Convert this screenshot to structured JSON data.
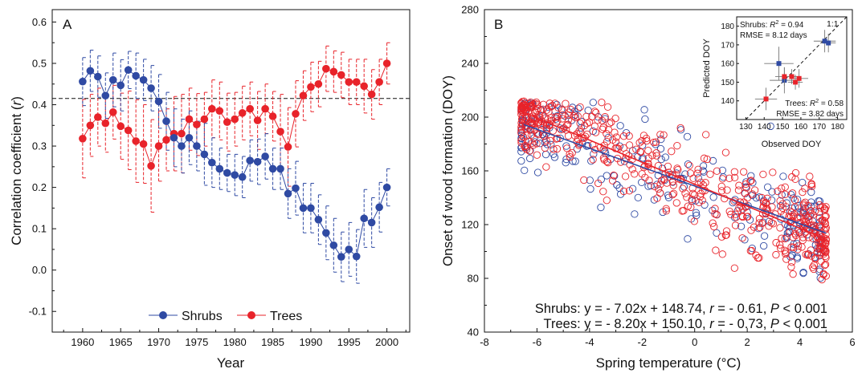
{
  "colors": {
    "shrubs": "#2f4aa3",
    "trees": "#e8232a",
    "text": "#111111",
    "axis": "#111111"
  },
  "chart_data": [
    {
      "panel": "A",
      "type": "line",
      "xlabel": "Year",
      "ylabel_main": "Correlation coefficient (",
      "ylabel_var": "r",
      "ylabel_end": ")",
      "xlim": [
        1956,
        2003
      ],
      "ylim": [
        -0.15,
        0.63
      ],
      "xticks": [
        "1960",
        "1965",
        "1970",
        "1975",
        "1980",
        "1985",
        "1990",
        "1995",
        "2000"
      ],
      "yticks": [
        "-0.1",
        "0.0",
        "0.1",
        "0.2",
        "0.3",
        "0.4",
        "0.5",
        "0.6"
      ],
      "threshold": 0.415,
      "x": [
        1960,
        1961,
        1962,
        1963,
        1964,
        1965,
        1966,
        1967,
        1968,
        1969,
        1970,
        1971,
        1972,
        1973,
        1974,
        1975,
        1976,
        1977,
        1978,
        1979,
        1980,
        1981,
        1982,
        1983,
        1984,
        1985,
        1986,
        1987,
        1988,
        1989,
        1990,
        1991,
        1992,
        1993,
        1994,
        1995,
        1996,
        1997,
        1998,
        1999,
        2000
      ],
      "series": [
        {
          "name": "Shrubs",
          "values": [
            0.456,
            0.482,
            0.468,
            0.422,
            0.46,
            0.447,
            0.484,
            0.47,
            0.46,
            0.44,
            0.408,
            0.36,
            0.32,
            0.3,
            0.32,
            0.3,
            0.28,
            0.26,
            0.245,
            0.235,
            0.23,
            0.225,
            0.265,
            0.262,
            0.275,
            0.245,
            0.245,
            0.185,
            0.198,
            0.15,
            0.15,
            0.122,
            0.09,
            0.06,
            0.032,
            0.05,
            0.033,
            0.125,
            0.115,
            0.152,
            0.2
          ],
          "err": [
            0.058,
            0.05,
            0.05,
            0.055,
            0.065,
            0.062,
            0.045,
            0.055,
            0.05,
            0.055,
            0.065,
            0.07,
            0.07,
            0.065,
            0.065,
            0.06,
            0.075,
            0.06,
            0.05,
            0.045,
            0.05,
            0.05,
            0.05,
            0.055,
            0.055,
            0.05,
            0.05,
            0.06,
            0.065,
            0.06,
            0.06,
            0.06,
            0.065,
            0.065,
            0.06,
            0.065,
            0.065,
            0.07,
            0.06,
            0.06,
            0.045
          ]
        },
        {
          "name": "Trees",
          "values": [
            0.318,
            0.35,
            0.37,
            0.355,
            0.382,
            0.348,
            0.338,
            0.312,
            0.305,
            0.252,
            0.3,
            0.315,
            0.33,
            0.33,
            0.365,
            0.352,
            0.365,
            0.39,
            0.385,
            0.358,
            0.365,
            0.38,
            0.39,
            0.362,
            0.39,
            0.372,
            0.335,
            0.298,
            0.378,
            0.422,
            0.443,
            0.45,
            0.487,
            0.48,
            0.472,
            0.455,
            0.455,
            0.445,
            0.425,
            0.455,
            0.5
          ],
          "err": [
            0.095,
            0.075,
            0.07,
            0.07,
            0.065,
            0.08,
            0.095,
            0.1,
            0.095,
            0.112,
            0.085,
            0.075,
            0.09,
            0.095,
            0.075,
            0.075,
            0.065,
            0.07,
            0.07,
            0.07,
            0.065,
            0.065,
            0.065,
            0.07,
            0.06,
            0.06,
            0.09,
            0.095,
            0.08,
            0.06,
            0.06,
            0.055,
            0.055,
            0.05,
            0.055,
            0.055,
            0.055,
            0.065,
            0.06,
            0.055,
            0.05
          ]
        }
      ],
      "legend": {
        "placement": "bottom-center",
        "entries": [
          "Shrubs",
          "Trees"
        ]
      }
    },
    {
      "panel": "B",
      "type": "scatter",
      "xlabel_main": "Spring temperature (",
      "xlabel_unit": "°C",
      "xlabel_end": ")",
      "ylabel": "Onset of wood formation (DOY)",
      "xlim": [
        -8,
        6
      ],
      "ylim": [
        40,
        280
      ],
      "xticks": [
        "-8",
        "-6",
        "-4",
        "-2",
        "0",
        "2",
        "4",
        "6"
      ],
      "yticks": [
        "40",
        "80",
        "120",
        "160",
        "200",
        "240",
        "280"
      ],
      "scatter_n": {
        "Shrubs": 260,
        "Trees": 560
      },
      "scatter_x_range": {
        "Shrubs": [
          -6.6,
          4.8
        ],
        "Trees": [
          -6.6,
          5.0
        ]
      },
      "scatter_sd": {
        "Shrubs": 17,
        "Trees": 15
      },
      "fits": [
        {
          "name": "Shrubs",
          "slope": -7.02,
          "intercept": 148.74,
          "x_range": [
            -6.5,
            5.0
          ]
        },
        {
          "name": "Trees",
          "slope": -8.2,
          "intercept": 150.1,
          "x_range": [
            -6.5,
            5.0
          ]
        }
      ],
      "equations": [
        {
          "name": "Shrubs",
          "prefix": "Shrubs: y = - 7.02x + 148.74, ",
          "r_var": "r",
          "r_val": " = - 0.61, ",
          "p_var": "P",
          "p_val": " < 0.001"
        },
        {
          "name": "Trees",
          "prefix": "Trees: y = - 8.20x + 150.10, ",
          "r_var": "r",
          "r_val": " = - 0.73, ",
          "p_var": "P",
          "p_val": " < 0.001"
        }
      ],
      "inset": {
        "type": "scatter",
        "xlabel": "Observed DOY",
        "ylabel": "Predicted DOY",
        "xlim": [
          125,
          185
        ],
        "ylim": [
          130,
          185
        ],
        "xticks": [
          "130",
          "140",
          "150",
          "160",
          "170",
          "180"
        ],
        "yticks": [
          "140",
          "150",
          "160",
          "170",
          "180"
        ],
        "one_to_one_label": "1:1",
        "shrubs_stats": {
          "name": "Shrubs: ",
          "r2_var": "R",
          "r2_val": " = 0.94",
          "rmse": "RMSE = 8.12 days"
        },
        "trees_stats": {
          "name": "Trees: ",
          "r2_var": "R",
          "r2_val": " = 0.58",
          "rmse": "RMSE = 3.82 days"
        },
        "shrubs_points": [
          {
            "x": 148,
            "y": 160,
            "xerr": 8,
            "yerr": 9
          },
          {
            "x": 151,
            "y": 151,
            "xerr": 8,
            "yerr": 7
          },
          {
            "x": 173,
            "y": 172,
            "xerr": 6,
            "yerr": 6
          },
          {
            "x": 175,
            "y": 171,
            "xerr": 4,
            "yerr": 5
          }
        ],
        "trees_points": [
          {
            "x": 141,
            "y": 141,
            "xerr": 6,
            "yerr": 6
          },
          {
            "x": 151,
            "y": 153,
            "xerr": 5,
            "yerr": 5
          },
          {
            "x": 155,
            "y": 153,
            "xerr": 4,
            "yerr": 4
          },
          {
            "x": 157,
            "y": 150,
            "xerr": 4,
            "yerr": 4
          },
          {
            "x": 159,
            "y": 152,
            "xerr": 5,
            "yerr": 5
          }
        ]
      }
    }
  ]
}
